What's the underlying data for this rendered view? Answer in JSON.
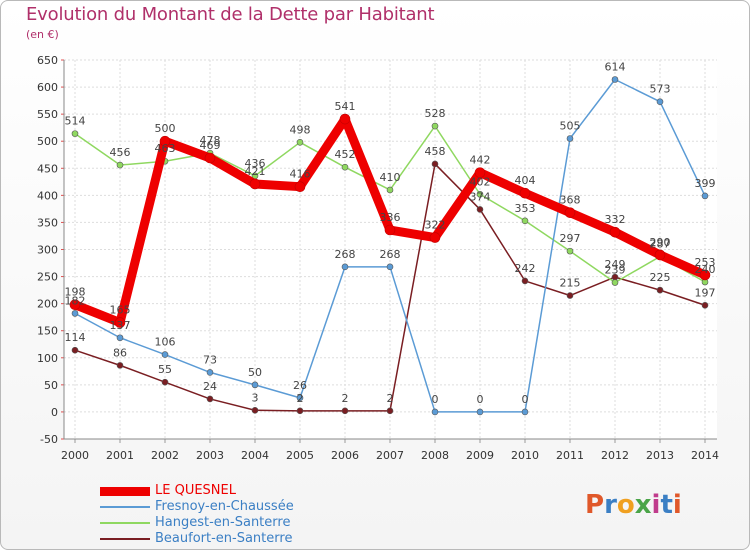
{
  "header": {
    "title": "Evolution du Montant de la Dette par Habitant",
    "unit": "(en €)"
  },
  "logo": {
    "text": "Proxiti",
    "colors": [
      "#e0582a",
      "#3b7fc4",
      "#f0a020",
      "#4aa548",
      "#c03c8c",
      "#3b7fc4",
      "#e0582a"
    ]
  },
  "chart_data": {
    "type": "line",
    "title": "Evolution du Montant de la Dette par Habitant",
    "ylabel": "(en €)",
    "xlabel": "",
    "ylim": [
      -50,
      650
    ],
    "yticks": [
      -50,
      0,
      50,
      100,
      150,
      200,
      250,
      300,
      350,
      400,
      450,
      500,
      550,
      600,
      650
    ],
    "categories": [
      "2000",
      "2001",
      "2002",
      "2003",
      "2004",
      "2005",
      "2006",
      "2007",
      "2008",
      "2009",
      "2010",
      "2011",
      "2012",
      "2013",
      "2014"
    ],
    "grid": true,
    "legend_position": "bottom-left",
    "series": [
      {
        "name": "Beaufort-en-Santerre",
        "color": "#7a1e22",
        "bold": false,
        "values": [
          114,
          86,
          55,
          24,
          3,
          2,
          2,
          2,
          458,
          374,
          242,
          215,
          249,
          225,
          197
        ]
      },
      {
        "name": "Hangest-en-Santerre",
        "color": "#8fd860",
        "bold": false,
        "values": [
          514,
          456,
          463,
          478,
          436,
          498,
          452,
          410,
          528,
          402,
          353,
          297,
          239,
          287,
          240
        ]
      },
      {
        "name": "Fresnoy-en-Chaussée",
        "color": "#5b9bd5",
        "bold": false,
        "values": [
          182,
          137,
          106,
          73,
          50,
          26,
          268,
          268,
          0,
          0,
          0,
          505,
          614,
          573,
          399
        ]
      },
      {
        "name": "LE QUESNEL",
        "color": "#ee0000",
        "bold": true,
        "values": [
          198,
          165,
          500,
          469,
          421,
          416,
          541,
          336,
          322,
          442,
          404,
          368,
          332,
          290,
          253
        ]
      }
    ],
    "legend_order": [
      "LE QUESNEL",
      "Fresnoy-en-Chaussée",
      "Hangest-en-Santerre",
      "Beaufort-en-Santerre"
    ]
  }
}
